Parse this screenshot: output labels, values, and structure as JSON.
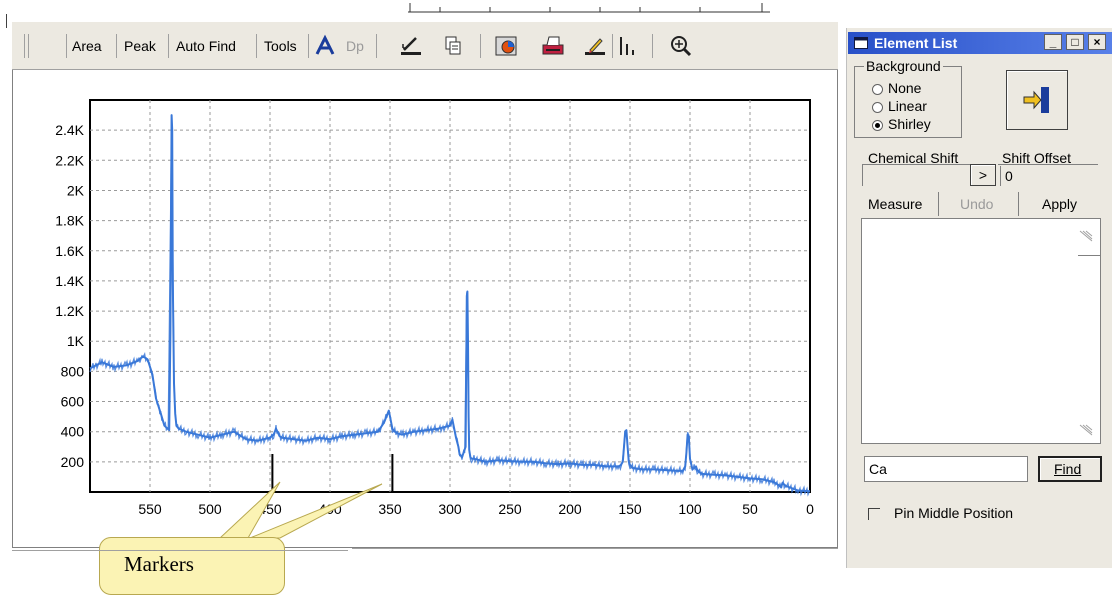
{
  "toolbar": {
    "area": "Area",
    "peak": "Peak",
    "auto_find": "Auto Find",
    "tools": "Tools",
    "dp": "Dp"
  },
  "element_list": {
    "title": "Element List",
    "background_label": "Background",
    "background_options": [
      "None",
      "Linear",
      "Shirley"
    ],
    "background_selected": "Shirley",
    "chemical_shift_label": "Chemical Shift",
    "shift_offset_label": "Shift Offset",
    "arrow_button": ">",
    "shift_offset_value": "0",
    "measure_button": "Measure",
    "undo_button": "Undo",
    "apply_button": "Apply",
    "element_value": "Ca",
    "find_button": "Find",
    "pin_middle_label": "Pin Middle Position",
    "pin_middle_checked": false
  },
  "callout": {
    "text": "Markers"
  },
  "chart_data": {
    "type": "line",
    "x_reversed": true,
    "xlim": [
      600,
      0
    ],
    "ylim": [
      0,
      2600
    ],
    "x_ticks": [
      "550",
      "500",
      "450",
      "400",
      "350",
      "300",
      "250",
      "200",
      "150",
      "100",
      "50",
      "0"
    ],
    "y_ticks": [
      "200",
      "400",
      "600",
      "800",
      "1K",
      "1.2K",
      "1.4K",
      "1.6K",
      "1.8K",
      "2K",
      "2.2K",
      "2.4K"
    ],
    "grid": true,
    "series": [
      {
        "color": "#3a78d8",
        "x": [
          600,
          590,
          580,
          570,
          560,
          556,
          552,
          548,
          545,
          541,
          538,
          534,
          533,
          532,
          531.5,
          531,
          530,
          529,
          528,
          526,
          520,
          510,
          500,
          490,
          480,
          470,
          460,
          450,
          447,
          445,
          442,
          440,
          430,
          420,
          410,
          400,
          390,
          380,
          370,
          360,
          355,
          351,
          348,
          346,
          344,
          340,
          330,
          320,
          310,
          305,
          300,
          298,
          295,
          293,
          292,
          290,
          287,
          286,
          285.5,
          285,
          284.5,
          284,
          283,
          282,
          280,
          270,
          260,
          250,
          240,
          230,
          220,
          210,
          200,
          190,
          180,
          170,
          160,
          158,
          156,
          155,
          154,
          153,
          152,
          151,
          150,
          148,
          140,
          130,
          120,
          110,
          106,
          104,
          103,
          102,
          101,
          100,
          98,
          95,
          94,
          92,
          90,
          80,
          70,
          60,
          50,
          40,
          30,
          25,
          24,
          23,
          20,
          10,
          0
        ],
        "y": [
          820,
          860,
          830,
          840,
          870,
          900,
          880,
          780,
          620,
          520,
          440,
          410,
          1050,
          2500,
          2400,
          1400,
          720,
          520,
          440,
          420,
          400,
          380,
          360,
          380,
          400,
          350,
          340,
          360,
          380,
          420,
          370,
          360,
          350,
          340,
          360,
          350,
          370,
          380,
          390,
          400,
          460,
          540,
          420,
          400,
          390,
          380,
          400,
          410,
          420,
          430,
          440,
          480,
          360,
          300,
          250,
          230,
          300,
          1300,
          1330,
          1000,
          500,
          280,
          230,
          220,
          220,
          200,
          210,
          205,
          200,
          200,
          190,
          185,
          190,
          180,
          180,
          170,
          170,
          175,
          200,
          300,
          400,
          410,
          300,
          200,
          180,
          160,
          150,
          150,
          145,
          140,
          140,
          170,
          260,
          380,
          370,
          220,
          150,
          170,
          145,
          130,
          120,
          115,
          110,
          100,
          90,
          85,
          65,
          40,
          30,
          60,
          40,
          10,
          5
        ]
      }
    ],
    "markers_x": [
      448,
      348
    ]
  }
}
